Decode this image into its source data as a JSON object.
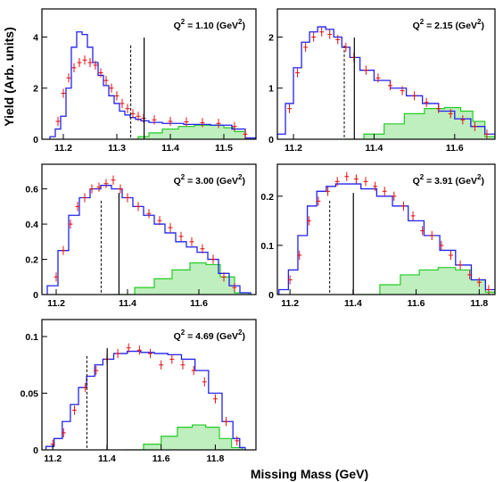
{
  "figure": {
    "ylabel": "Yield (Arb. units)",
    "xlabel": "Missing Mass (GeV)"
  },
  "colors": {
    "simulation": "#2222ee",
    "data": "#e01010",
    "background": "#22cc22",
    "background_fill": "#bfeebf",
    "cut_lines": "#000000"
  },
  "chart_data": [
    {
      "type": "line",
      "title": "Q² = 1.10 (GeV²)",
      "title_parts": {
        "pre": "Q",
        "sup1": "2",
        "mid": " = 1.10 (GeV",
        "sup2": "2",
        "post": ")"
      },
      "xlim": [
        11.16,
        11.56
      ],
      "ylim": [
        0,
        5.1
      ],
      "xticks": [
        "11.2",
        "11.3",
        "11.4",
        "11.5"
      ],
      "xtick_values": [
        11.2,
        11.3,
        11.4,
        11.5
      ],
      "yticks": [
        "0",
        "2",
        "4"
      ],
      "ytick_values": [
        0,
        2,
        4
      ],
      "cut_dashed": 11.326,
      "cut_solid": 11.351,
      "series": [
        {
          "name": "",
          "kind": "simulation",
          "x": [
            11.18,
            11.19,
            11.2,
            11.21,
            11.22,
            11.23,
            11.24,
            11.25,
            11.26,
            11.27,
            11.28,
            11.29,
            11.3,
            11.31,
            11.32,
            11.33,
            11.34,
            11.35,
            11.37,
            11.4,
            11.45,
            11.5,
            11.53,
            11.55
          ],
          "values": [
            0.1,
            0.4,
            0.9,
            2.0,
            3.6,
            4.2,
            4.1,
            3.6,
            3.0,
            2.5,
            2.1,
            1.7,
            1.4,
            1.1,
            0.95,
            0.85,
            0.78,
            0.72,
            0.66,
            0.62,
            0.58,
            0.55,
            0.4,
            0.05
          ]
        },
        {
          "name": "",
          "kind": "data",
          "x": [
            11.19,
            11.2,
            11.21,
            11.22,
            11.23,
            11.24,
            11.25,
            11.26,
            11.27,
            11.28,
            11.29,
            11.3,
            11.31,
            11.32,
            11.33,
            11.34,
            11.35,
            11.37,
            11.4,
            11.43,
            11.46,
            11.49,
            11.52,
            11.54
          ],
          "values": [
            0.7,
            1.8,
            2.4,
            2.8,
            3.0,
            3.1,
            3.0,
            2.9,
            2.6,
            2.3,
            2.0,
            1.7,
            1.4,
            1.2,
            1.0,
            0.9,
            0.82,
            0.76,
            0.7,
            0.68,
            0.65,
            0.62,
            0.5,
            0.2
          ]
        },
        {
          "name": "",
          "kind": "background",
          "x": [
            11.33,
            11.35,
            11.37,
            11.4,
            11.43,
            11.46,
            11.49,
            11.51,
            11.53,
            11.55
          ],
          "values": [
            0,
            0.1,
            0.25,
            0.4,
            0.5,
            0.55,
            0.55,
            0.45,
            0.3,
            0.05
          ]
        }
      ]
    },
    {
      "type": "line",
      "title": "Q² = 2.15 (GeV²)",
      "title_parts": {
        "pre": "Q",
        "sup1": "2",
        "mid": " = 2.15 (GeV",
        "sup2": "2",
        "post": ")"
      },
      "xlim": [
        11.16,
        11.7
      ],
      "ylim": [
        0,
        2.55
      ],
      "xticks": [
        "11.2",
        "11.4",
        "11.6"
      ],
      "xtick_values": [
        11.2,
        11.4,
        11.6
      ],
      "yticks": [
        "0",
        "1",
        "2"
      ],
      "ytick_values": [
        0,
        1,
        2
      ],
      "cut_dashed": 11.326,
      "cut_solid": 11.351,
      "series": [
        {
          "name": "",
          "kind": "simulation",
          "x": [
            11.17,
            11.19,
            11.21,
            11.23,
            11.25,
            11.27,
            11.29,
            11.31,
            11.33,
            11.35,
            11.38,
            11.42,
            11.46,
            11.5,
            11.54,
            11.58,
            11.62,
            11.66,
            11.69
          ],
          "values": [
            0.1,
            0.7,
            1.4,
            1.9,
            2.1,
            2.2,
            2.15,
            2.0,
            1.8,
            1.6,
            1.35,
            1.15,
            1.0,
            0.85,
            0.7,
            0.55,
            0.4,
            0.25,
            0.1
          ]
        },
        {
          "name": "",
          "kind": "data",
          "x": [
            11.19,
            11.21,
            11.23,
            11.25,
            11.27,
            11.29,
            11.31,
            11.33,
            11.35,
            11.38,
            11.41,
            11.44,
            11.47,
            11.5,
            11.53,
            11.56,
            11.59,
            11.62,
            11.65,
            11.68
          ],
          "values": [
            0.6,
            1.3,
            1.8,
            2.0,
            2.1,
            2.05,
            1.95,
            1.8,
            1.6,
            1.35,
            1.2,
            1.05,
            0.95,
            0.85,
            0.72,
            0.6,
            0.5,
            0.38,
            0.25,
            0.1
          ]
        },
        {
          "name": "",
          "kind": "background",
          "x": [
            11.35,
            11.4,
            11.45,
            11.5,
            11.55,
            11.6,
            11.63,
            11.66,
            11.69
          ],
          "values": [
            0,
            0.1,
            0.3,
            0.5,
            0.6,
            0.62,
            0.55,
            0.35,
            0.05
          ]
        }
      ]
    },
    {
      "type": "line",
      "title": "Q² = 3.00 (GeV²)",
      "title_parts": {
        "pre": "Q",
        "sup1": "2",
        "mid": " = 3.00 (GeV",
        "sup2": "2",
        "post": ")"
      },
      "xlim": [
        11.16,
        11.76
      ],
      "ylim": [
        0,
        0.74
      ],
      "xticks": [
        "11.2",
        "11.4",
        "11.6"
      ],
      "xtick_values": [
        11.2,
        11.4,
        11.6
      ],
      "yticks": [
        "0",
        "0.2",
        "0.4",
        "0.6"
      ],
      "ytick_values": [
        0,
        0.2,
        0.4,
        0.6
      ],
      "cut_dashed": 11.326,
      "cut_solid": 11.376,
      "series": [
        {
          "name": "",
          "kind": "simulation",
          "x": [
            11.19,
            11.22,
            11.25,
            11.28,
            11.31,
            11.34,
            11.37,
            11.4,
            11.43,
            11.46,
            11.49,
            11.52,
            11.55,
            11.58,
            11.61,
            11.64,
            11.67,
            11.7,
            11.73
          ],
          "values": [
            0.05,
            0.25,
            0.45,
            0.55,
            0.6,
            0.62,
            0.6,
            0.55,
            0.5,
            0.45,
            0.4,
            0.35,
            0.3,
            0.27,
            0.24,
            0.2,
            0.12,
            0.05,
            0.01
          ]
        },
        {
          "name": "",
          "kind": "data",
          "x": [
            11.2,
            11.22,
            11.24,
            11.26,
            11.28,
            11.3,
            11.32,
            11.34,
            11.36,
            11.38,
            11.4,
            11.43,
            11.46,
            11.49,
            11.52,
            11.55,
            11.58,
            11.61,
            11.64,
            11.67,
            11.7
          ],
          "values": [
            0.1,
            0.25,
            0.4,
            0.5,
            0.55,
            0.6,
            0.61,
            0.63,
            0.65,
            0.6,
            0.55,
            0.5,
            0.46,
            0.42,
            0.38,
            0.33,
            0.3,
            0.26,
            0.2,
            0.1,
            0.04
          ]
        },
        {
          "name": "",
          "kind": "background",
          "x": [
            11.39,
            11.45,
            11.5,
            11.55,
            11.6,
            11.64,
            11.68,
            11.72
          ],
          "values": [
            0,
            0.04,
            0.09,
            0.14,
            0.18,
            0.17,
            0.1,
            0.01
          ]
        }
      ]
    },
    {
      "type": "line",
      "title": "Q² = 3.91 (GeV²)",
      "title_parts": {
        "pre": "Q",
        "sup1": "2",
        "mid": " = 3.91 (GeV",
        "sup2": "2",
        "post": ")"
      },
      "xlim": [
        11.16,
        11.85
      ],
      "ylim": [
        0,
        0.265
      ],
      "xticks": [
        "11.2",
        "11.4",
        "11.6",
        "11.8"
      ],
      "xtick_values": [
        11.2,
        11.4,
        11.6,
        11.8
      ],
      "yticks": [
        "0",
        "0.1",
        "0.2"
      ],
      "ytick_values": [
        0,
        0.1,
        0.2
      ],
      "cut_dashed": 11.326,
      "cut_solid": 11.401,
      "series": [
        {
          "name": "",
          "kind": "simulation",
          "x": [
            11.18,
            11.21,
            11.24,
            11.27,
            11.3,
            11.33,
            11.36,
            11.4,
            11.45,
            11.5,
            11.55,
            11.6,
            11.65,
            11.7,
            11.75,
            11.8,
            11.84
          ],
          "values": [
            0.01,
            0.05,
            0.12,
            0.18,
            0.21,
            0.22,
            0.225,
            0.225,
            0.215,
            0.2,
            0.18,
            0.15,
            0.12,
            0.09,
            0.06,
            0.03,
            0.01
          ]
        },
        {
          "name": "",
          "kind": "data",
          "x": [
            11.2,
            11.23,
            11.26,
            11.29,
            11.32,
            11.35,
            11.38,
            11.41,
            11.44,
            11.47,
            11.5,
            11.53,
            11.56,
            11.59,
            11.62,
            11.65,
            11.68,
            11.71,
            11.74,
            11.77,
            11.8,
            11.83
          ],
          "values": [
            0.03,
            0.08,
            0.15,
            0.19,
            0.21,
            0.23,
            0.24,
            0.235,
            0.23,
            0.22,
            0.21,
            0.2,
            0.18,
            0.16,
            0.13,
            0.12,
            0.1,
            0.08,
            0.06,
            0.04,
            0.025,
            0.01
          ]
        },
        {
          "name": "",
          "kind": "background",
          "x": [
            11.45,
            11.52,
            11.58,
            11.64,
            11.7,
            11.75,
            11.8,
            11.84
          ],
          "values": [
            0,
            0.02,
            0.04,
            0.05,
            0.055,
            0.05,
            0.03,
            0.005
          ]
        }
      ]
    },
    {
      "type": "line",
      "title": "Q² = 4.69 (GeV²)",
      "title_parts": {
        "pre": "Q",
        "sup1": "2",
        "mid": " = 4.69 (GeV",
        "sup2": "2",
        "post": ")"
      },
      "xlim": [
        11.16,
        11.95
      ],
      "ylim": [
        0,
        0.115
      ],
      "xticks": [
        "11.2",
        "11.4",
        "11.6",
        "11.8"
      ],
      "xtick_values": [
        11.2,
        11.4,
        11.6,
        11.8
      ],
      "yticks": [
        "0",
        "0.05",
        "0.1"
      ],
      "ytick_values": [
        0,
        0.05,
        0.1
      ],
      "cut_dashed": 11.326,
      "cut_solid": 11.401,
      "series": [
        {
          "name": "",
          "kind": "simulation",
          "x": [
            11.19,
            11.22,
            11.25,
            11.28,
            11.31,
            11.34,
            11.37,
            11.4,
            11.45,
            11.5,
            11.55,
            11.6,
            11.65,
            11.7,
            11.75,
            11.8,
            11.85,
            11.88,
            11.9
          ],
          "values": [
            0.003,
            0.01,
            0.025,
            0.04,
            0.055,
            0.065,
            0.075,
            0.08,
            0.085,
            0.087,
            0.086,
            0.085,
            0.084,
            0.08,
            0.07,
            0.05,
            0.025,
            0.01,
            0.002
          ]
        },
        {
          "name": "",
          "kind": "data",
          "x": [
            11.2,
            11.24,
            11.28,
            11.32,
            11.36,
            11.4,
            11.44,
            11.48,
            11.52,
            11.56,
            11.6,
            11.64,
            11.68,
            11.72,
            11.76,
            11.8,
            11.84,
            11.88
          ],
          "values": [
            0.005,
            0.015,
            0.035,
            0.055,
            0.07,
            0.08,
            0.085,
            0.09,
            0.088,
            0.085,
            0.075,
            0.08,
            0.075,
            0.07,
            0.06,
            0.045,
            0.025,
            0.008
          ]
        },
        {
          "name": "",
          "kind": "background",
          "x": [
            11.5,
            11.57,
            11.63,
            11.69,
            11.74,
            11.79,
            11.84,
            11.88
          ],
          "values": [
            0,
            0.005,
            0.012,
            0.02,
            0.022,
            0.02,
            0.01,
            0.002
          ]
        }
      ]
    }
  ]
}
